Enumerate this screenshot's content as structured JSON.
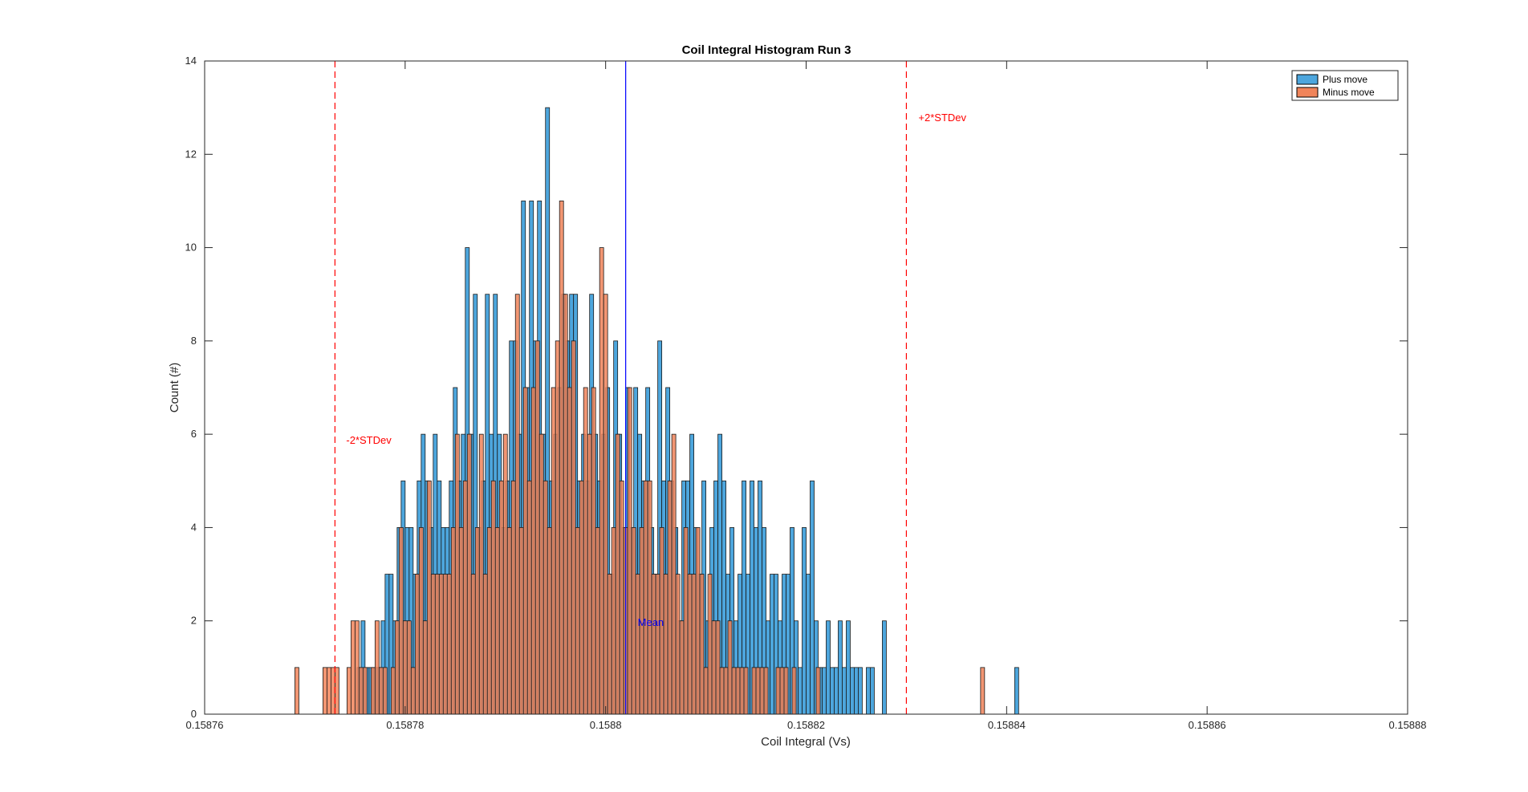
{
  "chart_data": {
    "type": "histogram",
    "title": "Coil Integral Histogram Run 3",
    "xlabel": "Coil Integral (Vs)",
    "ylabel": "Count (#)",
    "xlim": [
      0.15876,
      0.15888
    ],
    "ylim": [
      0,
      14
    ],
    "xticks": [
      0.15876,
      0.15878,
      0.1588,
      0.15882,
      0.15884,
      0.15886,
      0.15888
    ],
    "xtick_labels": [
      "0.15876",
      "0.15878",
      "0.1588",
      "0.15882",
      "0.15884",
      "0.15886",
      "0.15888"
    ],
    "yticks": [
      0,
      2,
      4,
      6,
      8,
      10,
      12,
      14
    ],
    "ytick_labels": [
      "0",
      "2",
      "4",
      "6",
      "8",
      "10",
      "12",
      "14"
    ],
    "bin_width": 4e-07,
    "legend": {
      "position": "top-right",
      "entries": [
        "Plus move",
        "Minus move"
      ]
    },
    "series": [
      {
        "name": "Plus move",
        "color": "#4da6dd",
        "bin_start": 0.158774,
        "counts": [
          0,
          0,
          0,
          1,
          2,
          1,
          1,
          1,
          1,
          2,
          3,
          3,
          2,
          4,
          5,
          4,
          4,
          3,
          5,
          6,
          5,
          4,
          6,
          5,
          4,
          4,
          5,
          7,
          5,
          6,
          10,
          6,
          9,
          4,
          5,
          9,
          6,
          9,
          6,
          4,
          5,
          8,
          8,
          6,
          11,
          7,
          11,
          8,
          11,
          6,
          13,
          5,
          6,
          7,
          9,
          8,
          9,
          9,
          5,
          6,
          5,
          9,
          6,
          5,
          6,
          7,
          3,
          8,
          6,
          4,
          7,
          4,
          7,
          6,
          5,
          7,
          4,
          3,
          8,
          5,
          7,
          5,
          4,
          2,
          5,
          5,
          6,
          4,
          3,
          5,
          2,
          4,
          5,
          6,
          5,
          3,
          4,
          2,
          3,
          5,
          3,
          5,
          4,
          5,
          4,
          2,
          3,
          3,
          2,
          3,
          3,
          4,
          2,
          1,
          4,
          3,
          5,
          2,
          1,
          1,
          2,
          1,
          1,
          2,
          1,
          2,
          1,
          1,
          1,
          0,
          1,
          1,
          0,
          0,
          2,
          0,
          0,
          0,
          0,
          0,
          0,
          0,
          0,
          0,
          0,
          0,
          0,
          0,
          0,
          0,
          0,
          0,
          0,
          0,
          0,
          0,
          0,
          0,
          0,
          0,
          0,
          0,
          0,
          0,
          0,
          0,
          0,
          1
        ]
      },
      {
        "name": "Minus move",
        "color": "#f0845a",
        "bin_start": 0.158769,
        "counts": [
          1,
          0,
          0,
          0,
          0,
          0,
          0,
          1,
          1,
          1,
          1,
          0,
          0,
          1,
          2,
          2,
          1,
          1,
          0,
          1,
          2,
          1,
          1,
          0,
          1,
          2,
          4,
          2,
          2,
          1,
          3,
          4,
          2,
          5,
          3,
          3,
          3,
          3,
          3,
          4,
          6,
          4,
          5,
          6,
          3,
          4,
          6,
          3,
          4,
          5,
          4,
          5,
          6,
          4,
          5,
          9,
          4,
          7,
          5,
          7,
          8,
          6,
          5,
          4,
          7,
          8,
          11,
          9,
          7,
          8,
          4,
          5,
          7,
          6,
          7,
          4,
          10,
          9,
          3,
          4,
          6,
          5,
          4,
          7,
          4,
          3,
          4,
          5,
          5,
          3,
          3,
          4,
          3,
          5,
          6,
          3,
          2,
          4,
          3,
          3,
          4,
          3,
          1,
          3,
          2,
          2,
          1,
          1,
          2,
          1,
          1,
          1,
          1,
          0,
          1,
          1,
          1,
          1,
          0,
          0,
          1,
          1,
          1,
          0,
          1,
          0,
          0,
          0,
          0,
          0,
          1,
          0,
          0,
          0,
          0,
          0,
          0,
          0,
          0,
          0,
          0,
          0,
          0,
          0,
          0,
          0,
          0,
          0,
          0,
          0,
          0,
          0,
          0,
          0,
          0,
          0,
          0,
          0,
          0,
          0,
          0,
          0,
          0,
          0,
          0,
          0,
          0,
          0,
          0,
          0,
          0,
          1,
          0,
          0,
          0,
          0,
          0,
          0,
          0
        ]
      }
    ],
    "reference_lines": [
      {
        "name": "mean",
        "x": 0.158802,
        "label": "Mean",
        "color": "#0000ff",
        "style": "solid"
      },
      {
        "name": "minus-2std",
        "x": 0.158773,
        "label": "-2*STDev",
        "color": "#ff0000",
        "style": "dashed"
      },
      {
        "name": "plus-2std",
        "x": 0.15883,
        "label": "+2*STDev",
        "color": "#ff0000",
        "style": "dashed"
      }
    ]
  }
}
